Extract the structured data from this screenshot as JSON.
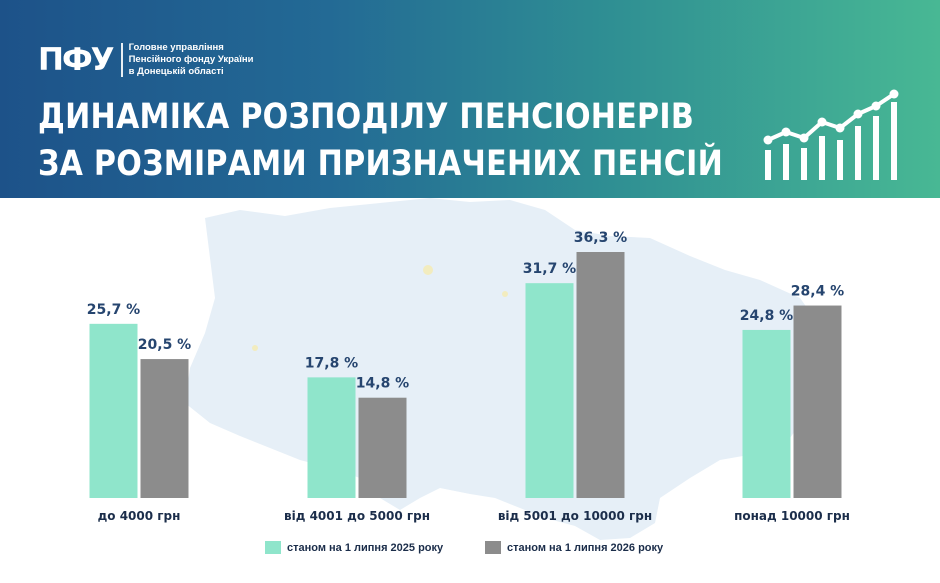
{
  "header": {
    "logo_mark": "ПФУ",
    "org_lines": [
      "Головне управління",
      "Пенсійного фонду України",
      "в Донецькій області"
    ],
    "title_lines": [
      "ДИНАМІКА РОЗПОДІЛУ ПЕНСІОНЕРІВ",
      "ЗА РОЗМІРАМИ ПРИЗНАЧЕНИХ ПЕНСІЙ"
    ],
    "decor_icon": "rising-bar-chart-icon"
  },
  "colors": {
    "series_2025": "#8fe5cb",
    "series_2026": "#8c8c8c",
    "label": "#26456f",
    "map": "#e6eff7"
  },
  "chart_data": {
    "type": "bar",
    "title": "ДИНАМІКА РОЗПОДІЛУ ПЕНСІОНЕРІВ ЗА РОЗМІРАМИ ПРИЗНАЧЕНИХ ПЕНСІЙ",
    "categories": [
      "до 4000 грн",
      "від 4001 до 5000 грн",
      "від 5001 до 10000 грн",
      "понад 10000 грн"
    ],
    "series": [
      {
        "name": "станом на 1 липня 2025 року",
        "values": [
          25.7,
          17.8,
          31.7,
          24.8
        ],
        "labels": [
          "25,7 %",
          "17,8 %",
          "31,7 %",
          "24,8 %"
        ]
      },
      {
        "name": "станом на 1 липня 2026 року",
        "values": [
          20.5,
          14.8,
          36.3,
          28.4
        ],
        "labels": [
          "20,5 %",
          "14,8 %",
          "36,3 %",
          "28,4 %"
        ]
      }
    ],
    "unit": "%",
    "xlabel": "",
    "ylabel": "",
    "ylim": [
      0,
      36.3
    ],
    "grid": false,
    "legend_position": "bottom"
  },
  "legend": {
    "items": [
      "станом на 1 липня 2025 року",
      "станом на 1 липня 2026 року"
    ]
  }
}
